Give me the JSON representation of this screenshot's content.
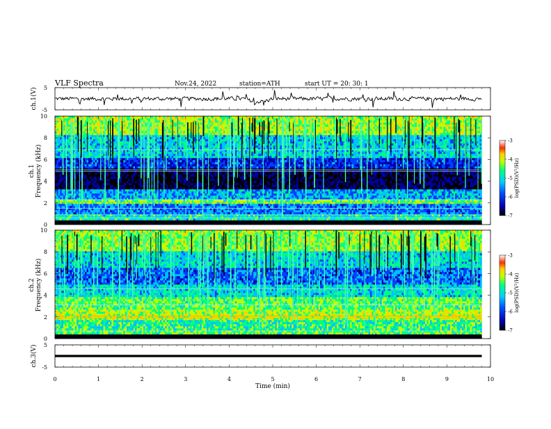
{
  "header": {
    "title": "VLF  Spectra",
    "date": "Nov.24, 2022",
    "station": "station=ATH",
    "start_ut": "start  UT  =    20: 30: 1"
  },
  "chart_data": {
    "type": "heatmap",
    "xlabel": "Time  (min)",
    "xlim": [
      0,
      10
    ],
    "x_ticks": [
      "0",
      "1",
      "2",
      "3",
      "4",
      "5",
      "6",
      "7",
      "8",
      "9",
      "10"
    ],
    "panels": [
      {
        "kind": "waveform",
        "ylabel": "ch.1(V)",
        "ylim": [
          -5,
          5
        ],
        "y_ticks": [
          "5",
          "-5"
        ],
        "data_end_min": 9.8
      },
      {
        "kind": "spectrogram",
        "ylabel_top": "ch.1",
        "ylabel": "Frequency  (kHz)",
        "ylim": [
          0,
          10
        ],
        "y_ticks": [
          "0",
          "2",
          "4",
          "6",
          "8",
          "10"
        ],
        "colorbar_label": "log(PSD)(V²/Hz)",
        "colorbar_range": [
          -7,
          -3
        ],
        "colorbar_ticks": [
          "-3",
          "-4",
          "-5",
          "-6",
          "-7"
        ],
        "data_end_min": 9.8
      },
      {
        "kind": "spectrogram",
        "ylabel_top": "ch.2",
        "ylabel": "Frequency  (kHz)",
        "ylim": [
          0,
          10
        ],
        "y_ticks": [
          "0",
          "2",
          "4",
          "6",
          "8",
          "10"
        ],
        "colorbar_label": "log(PSD)(V²/Hz)",
        "colorbar_range": [
          -7,
          -3
        ],
        "colorbar_ticks": [
          "-3",
          "-4",
          "-5",
          "-6",
          "-7"
        ],
        "data_end_min": 9.8
      },
      {
        "kind": "waveform",
        "ylabel": "ch.3(V)",
        "ylim": [
          -5,
          5
        ],
        "y_ticks": [
          "5",
          "-5"
        ],
        "data_end_min": 9.8
      }
    ],
    "colormap": [
      "#000000",
      "#0000aa",
      "#0040ff",
      "#00c0ff",
      "#00ff80",
      "#c0ff00",
      "#ffd000",
      "#ff4000",
      "#ffffff"
    ]
  }
}
